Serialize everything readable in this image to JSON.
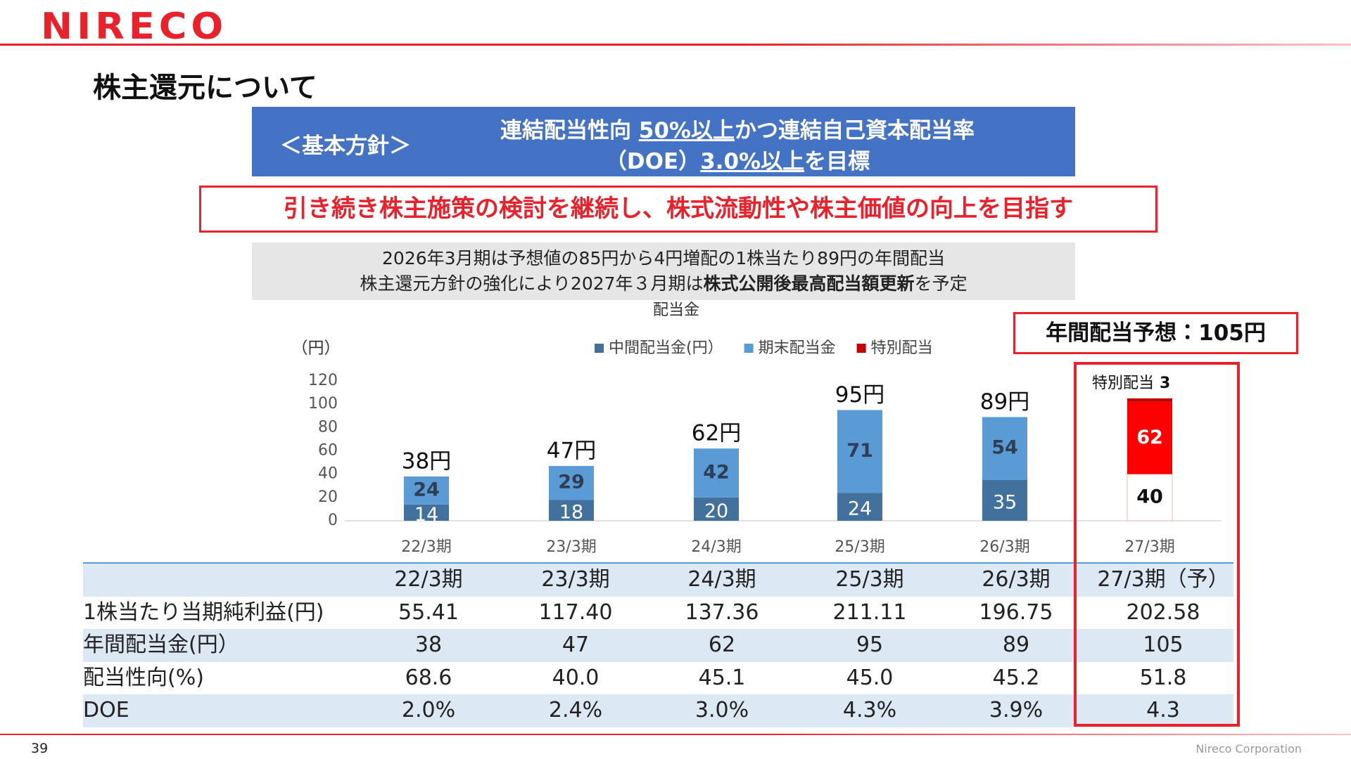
{
  "header": {
    "logo": "NIRECO",
    "title": "株主還元について"
  },
  "policy": {
    "label": "＜基本方針＞",
    "lines": [
      [
        "連結配当性向 ",
        "50%以上",
        "かつ連結自己資本配当率"
      ],
      [
        "（DOE）",
        "3.0%以上",
        "を目標"
      ]
    ]
  },
  "goal": "引き続き株主施策の検討を継続し、株式流動性や株主価値の向上を目指す",
  "note": {
    "line1": "2026年3月期は予想値の85円から4円増配の1株当たり89円の年間配当",
    "line2": [
      "株主還元方針の強化により2027年３月期は",
      "株式公開後最高配当額更新",
      "を予定"
    ]
  },
  "forecast": "年間配当予想：105円",
  "chart_data": {
    "type": "stacked_bar",
    "title": "配当金",
    "y_label": "（円）",
    "categories": [
      "22/3期",
      "23/3期",
      "24/3期",
      "25/3期",
      "26/3期",
      "27/3期"
    ],
    "series": [
      {
        "name": "中間配当金(円）",
        "color": "#41719c",
        "colors": [
          "#41719c",
          "#41719c",
          "#41719c",
          "#41719c",
          "#41719c",
          "#ffffff"
        ],
        "values": [
          14,
          18,
          20,
          24,
          35,
          40
        ]
      },
      {
        "name": "期末配当金",
        "color": "#5b9bd5",
        "colors": [
          "#5b9bd5",
          "#5b9bd5",
          "#5b9bd5",
          "#5b9bd5",
          "#5b9bd5",
          "#ff0000"
        ],
        "values": [
          24,
          29,
          42,
          71,
          54,
          62
        ]
      },
      {
        "name": "特別配当",
        "color": "#c00000",
        "colors": [
          "#c00000",
          "#c00000",
          "#c00000",
          "#c00000",
          "#c00000",
          "#c00000"
        ],
        "values": [
          null,
          null,
          null,
          null,
          null,
          3
        ]
      }
    ],
    "totals": {
      "values": [
        38,
        47,
        62,
        95,
        89,
        null
      ],
      "value_labels": [
        "38円",
        "47円",
        "62円",
        "95円",
        "89円",
        null
      ]
    },
    "annotation": "特別配当",
    "ylim": [
      0,
      120
    ],
    "yticks": [
      0,
      20,
      40,
      60,
      80,
      100,
      120
    ],
    "grid": false,
    "legend": "top"
  },
  "table": {
    "header": [
      "22/3期",
      "23/3期",
      "24/3期",
      "25/3期",
      "26/3期",
      "27/3期（予）"
    ],
    "rows": [
      [
        "1株当たり当期純利益(円)",
        "55.41",
        "117.40",
        "137.36",
        "211.11",
        "196.75",
        "202.58"
      ],
      [
        "年間配当金(円）",
        "38",
        "47",
        "62",
        "95",
        "89",
        "105"
      ],
      [
        "配当性向(%)",
        "68.6",
        "40.0",
        "45.1",
        "45.0",
        "45.2",
        "51.8"
      ],
      [
        "DOE",
        "2.0%",
        "2.4%",
        "3.0%",
        "4.3%",
        "3.9%",
        "4.3"
      ]
    ]
  },
  "footer": {
    "page": "39",
    "company": "Nireco Corporation"
  }
}
